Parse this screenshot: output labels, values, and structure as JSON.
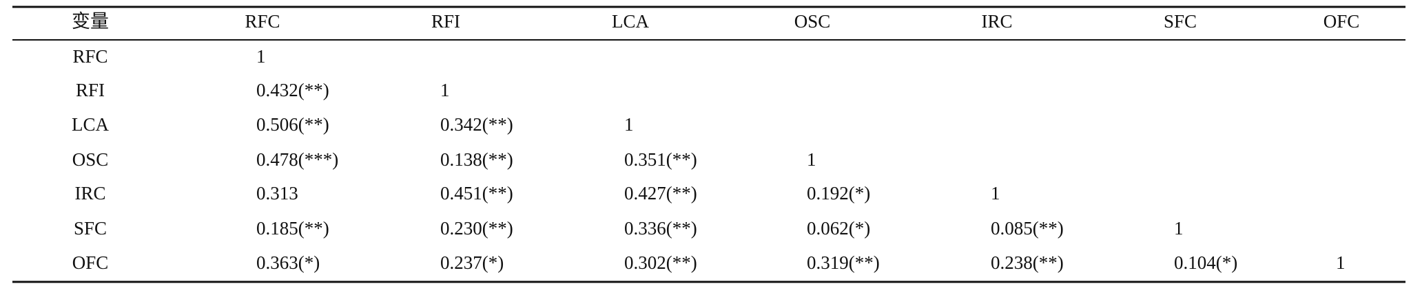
{
  "table": {
    "header": [
      "变量",
      "RFC",
      "RFI",
      "LCA",
      "OSC",
      "IRC",
      "SFC",
      "OFC"
    ],
    "rows": [
      [
        "RFC",
        "1"
      ],
      [
        "RFI",
        "0.432(**)",
        "1"
      ],
      [
        "LCA",
        "0.506(**)",
        "0.342(**)",
        "1"
      ],
      [
        "OSC",
        "0.478(***)",
        "0.138(**)",
        "0.351(**)",
        "1"
      ],
      [
        "IRC",
        "0.313",
        "0.451(**)",
        "0.427(**)",
        "0.192(*)",
        "1"
      ],
      [
        "SFC",
        "0.185(**)",
        "0.230(**)",
        "0.336(**)",
        "0.062(*)",
        "0.085(**)",
        "1"
      ],
      [
        "OFC",
        "0.363(*)",
        "0.237(*)",
        "0.302(**)",
        "0.319(**)",
        "0.238(**)",
        "0.104(*)",
        "1"
      ]
    ]
  }
}
